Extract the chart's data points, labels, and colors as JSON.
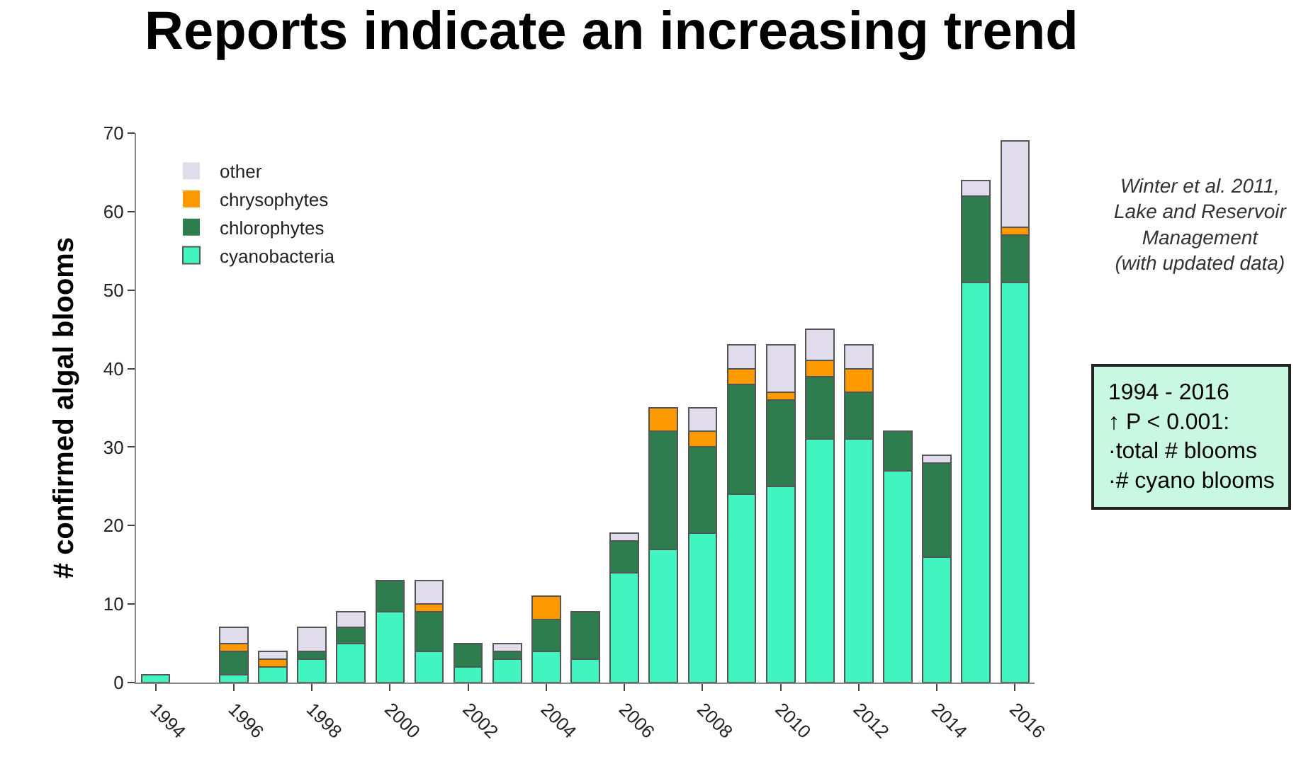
{
  "chart_data": {
    "type": "bar",
    "title": "Reports indicate an increasing trend",
    "ylabel": "# confirmed algal blooms",
    "categories": [
      "1994",
      null,
      "1996",
      null,
      "1998",
      null,
      "2000",
      null,
      "2002",
      null,
      "2004",
      null,
      "2006",
      null,
      "2008",
      null,
      "2010",
      null,
      "2012",
      null,
      "2014",
      null,
      "2016"
    ],
    "stacked": true,
    "series": [
      {
        "name": "cyanobacteria",
        "color": "#40f5c0",
        "values": [
          1,
          0,
          1,
          2,
          3,
          5,
          9,
          4,
          2,
          3,
          4,
          3,
          14,
          17,
          19,
          24,
          25,
          31,
          31,
          27,
          16,
          51,
          51
        ]
      },
      {
        "name": "chlorophytes",
        "color": "#2e7d4f",
        "values": [
          0,
          0,
          3,
          0,
          1,
          2,
          4,
          5,
          3,
          1,
          4,
          6,
          4,
          15,
          11,
          14,
          11,
          8,
          6,
          5,
          12,
          11,
          6
        ]
      },
      {
        "name": "chrysophytes",
        "color": "#ff9900",
        "values": [
          0,
          0,
          1,
          1,
          0,
          0,
          0,
          1,
          0,
          0,
          3,
          0,
          0,
          3,
          2,
          2,
          1,
          2,
          3,
          0,
          0,
          0,
          1
        ]
      },
      {
        "name": "other",
        "color": "#e0dcec",
        "values": [
          0,
          0,
          2,
          1,
          3,
          2,
          0,
          3,
          0,
          1,
          0,
          0,
          1,
          0,
          3,
          3,
          6,
          4,
          3,
          0,
          1,
          2,
          11
        ]
      }
    ],
    "ylim": [
      0,
      70
    ],
    "yticks": [
      0,
      10,
      20,
      30,
      40,
      50,
      60,
      70
    ],
    "legend": "top left",
    "annotations": [
      "Winter et al. 2011,\nLake and Reservoir\nManagement\n(with updated data)",
      "1994 - 2016\n↑ P < 0.001:\n·total # blooms\n·# cyano blooms"
    ]
  }
}
